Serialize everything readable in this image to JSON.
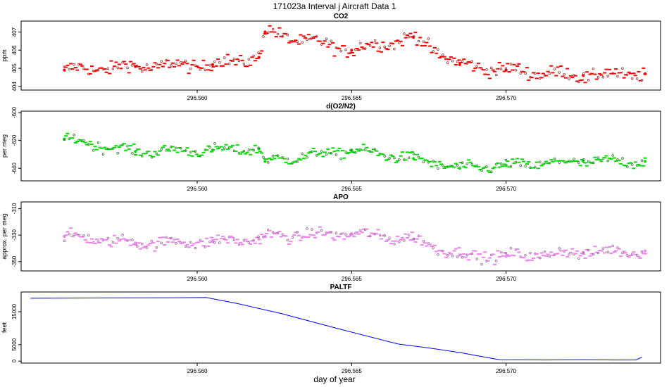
{
  "figure": {
    "title": "171023a   Interval j Aircraft Data 1",
    "xlabel": "day of year",
    "colors": {
      "co2": "#ff0000",
      "o2n2": "#00dd00",
      "apo": "#ee82ee",
      "paltf": "#0000ff"
    }
  },
  "chart_data": [
    {
      "type": "scatter",
      "title": "CO2",
      "ylabel": "ppm",
      "xlim": [
        296.5543,
        296.575
      ],
      "ylim": [
        403.8,
        407.6
      ],
      "yticks": [
        404,
        405,
        406,
        407
      ],
      "xticks": [
        296.56,
        296.565,
        296.57
      ],
      "xtick_labels": [
        "296.560",
        "296.565",
        "296.570"
      ],
      "x": [
        296.5557,
        296.558,
        296.5605,
        296.562,
        296.5622,
        296.565,
        296.567,
        296.5685,
        296.57,
        296.5725,
        296.5745
      ],
      "values": [
        404.9,
        405.1,
        405.2,
        405.6,
        407.0,
        406.0,
        406.7,
        405.2,
        404.9,
        404.6,
        404.7
      ]
    },
    {
      "type": "scatter",
      "title": "d(O2/N2)",
      "ylabel": "per meg",
      "xlim": [
        296.5543,
        296.575
      ],
      "ylim": [
        -649,
        -599
      ],
      "yticks": [
        -640,
        -620,
        -600
      ],
      "xticks": [
        296.56,
        296.565,
        296.57
      ],
      "xtick_labels": [
        "296.560",
        "296.565",
        "296.570"
      ],
      "x": [
        296.5557,
        296.558,
        296.5605,
        296.562,
        296.5622,
        296.565,
        296.567,
        296.5685,
        296.57,
        296.5725,
        296.5745
      ],
      "values": [
        -619,
        -628,
        -627,
        -626,
        -635,
        -627,
        -633,
        -640,
        -638,
        -635,
        -635
      ]
    },
    {
      "type": "scatter",
      "title": "APO",
      "ylabel": "approx. per meg",
      "xlim": [
        296.5543,
        296.575
      ],
      "ylim": [
        -357,
        -305
      ],
      "yticks": [
        -350,
        -330,
        -310
      ],
      "xticks": [
        296.56,
        296.565,
        296.57
      ],
      "xtick_labels": [
        "296.560",
        "296.565",
        "296.570"
      ],
      "x": [
        296.5557,
        296.558,
        296.5605,
        296.562,
        296.5622,
        296.565,
        296.567,
        296.5685,
        296.57,
        296.5725,
        296.5745
      ],
      "values": [
        -331,
        -336,
        -335,
        -333,
        -331,
        -329,
        -333,
        -345,
        -346,
        -343,
        -342
      ]
    },
    {
      "type": "line",
      "title": "PALTF",
      "ylabel": "feet",
      "xlim": [
        296.5543,
        296.575
      ],
      "ylim": [
        -600,
        21000
      ],
      "yticks": [
        0,
        5000,
        15000
      ],
      "yticklabels": [
        "0",
        "5000",
        "15000"
      ],
      "xticks": [
        296.56,
        296.565,
        296.57
      ],
      "xtick_labels": [
        "296.560",
        "296.565",
        "296.570"
      ],
      "x": [
        296.5546,
        296.557,
        296.559,
        296.5603,
        296.5613,
        296.5627,
        296.5645,
        296.5665,
        296.5675,
        296.5685,
        296.5695,
        296.5698,
        296.5712,
        296.5725,
        296.5735,
        296.5742,
        296.5744
      ],
      "values": [
        19100,
        19200,
        19250,
        19300,
        17500,
        14500,
        10000,
        5200,
        4000,
        2600,
        900,
        400,
        350,
        400,
        350,
        350,
        1200
      ]
    }
  ]
}
